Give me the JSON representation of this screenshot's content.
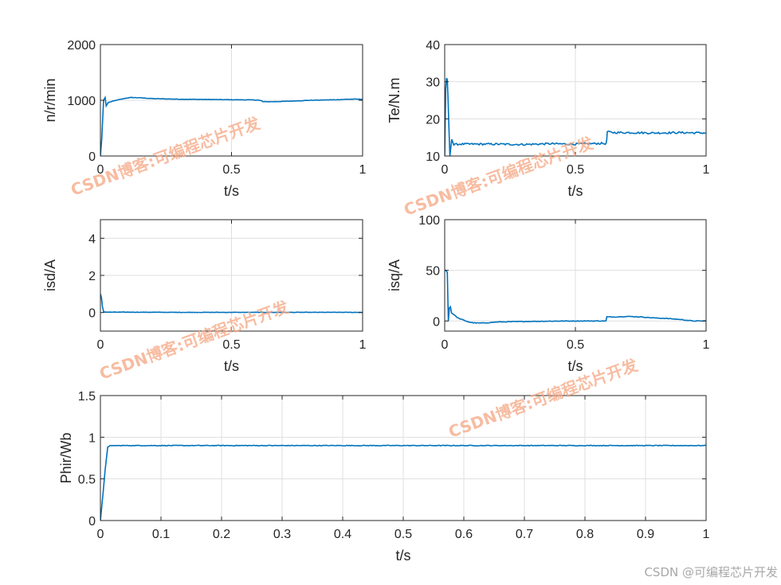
{
  "figure": {
    "watermark": "CSDN博客:可编程芯片开发",
    "footer": "CSDN @可编程芯片开发",
    "line_color": "#0072bd"
  },
  "chart_data": [
    {
      "type": "line",
      "xlabel": "t/s",
      "ylabel": "n/r/min",
      "xlim": [
        0,
        1
      ],
      "ylim": [
        0,
        2000
      ],
      "xticks": [
        0,
        0.5,
        1
      ],
      "xtick_labels": [
        "0",
        "0.5",
        "1"
      ],
      "yticks": [
        0,
        1000,
        2000
      ],
      "ytick_labels": [
        "0",
        "1000",
        "2000"
      ],
      "grid": true,
      "series": [
        {
          "x": [
            0,
            0.005,
            0.012,
            0.018,
            0.022,
            0.03,
            0.06,
            0.1,
            0.12,
            0.15,
            0.2,
            0.3,
            0.4,
            0.5,
            0.55,
            0.6,
            0.615,
            0.62,
            0.65,
            0.7,
            0.8,
            0.9,
            0.95,
            1.0
          ],
          "y": [
            0,
            300,
            1000,
            1050,
            900,
            960,
            1000,
            1040,
            1050,
            1045,
            1030,
            1020,
            1015,
            1010,
            1008,
            1005,
            990,
            975,
            975,
            980,
            1000,
            1010,
            1020,
            1020
          ],
          "noise": 4
        }
      ]
    },
    {
      "type": "line",
      "xlabel": "t/s",
      "ylabel": "Te/N.m",
      "xlim": [
        0,
        1
      ],
      "ylim": [
        10,
        40
      ],
      "xticks": [
        0,
        0.5,
        1
      ],
      "xtick_labels": [
        "0",
        "0.5",
        "1"
      ],
      "yticks": [
        10,
        20,
        30,
        40
      ],
      "ytick_labels": [
        "10",
        "20",
        "30",
        "40"
      ],
      "grid": true,
      "series": [
        {
          "x": [
            0,
            0.004,
            0.007,
            0.01,
            0.013,
            0.016,
            0.02,
            0.023,
            0.027,
            0.035,
            0.05,
            0.1,
            0.2,
            0.3,
            0.4,
            0.5,
            0.6,
            0.618,
            0.62,
            0.622,
            0.65,
            0.7,
            0.8,
            0.9,
            1.0
          ],
          "y": [
            10,
            28,
            31,
            30.5,
            25,
            18,
            10,
            12,
            14.5,
            13,
            13.2,
            13.2,
            13.2,
            13.1,
            13.3,
            13.2,
            13.4,
            13.3,
            14.5,
            16.5,
            16.3,
            16.3,
            16.2,
            16.3,
            16.2
          ],
          "noise": 0.25
        }
      ]
    },
    {
      "type": "line",
      "xlabel": "t/s",
      "ylabel": "isd/A",
      "xlim": [
        0,
        1
      ],
      "ylim": [
        -1,
        5
      ],
      "xticks": [
        0,
        0.5,
        1
      ],
      "xtick_labels": [
        "0",
        "0.5",
        "1"
      ],
      "yticks": [
        0,
        2,
        4
      ],
      "ytick_labels": [
        "0",
        "2",
        "4"
      ],
      "grid": true,
      "series": [
        {
          "x": [
            0,
            0.004,
            0.008,
            0.012,
            0.02,
            0.05,
            0.1,
            0.3,
            0.5,
            0.7,
            0.9,
            1.0
          ],
          "y": [
            1.0,
            0.8,
            0.3,
            0.05,
            0.02,
            0.02,
            0.02,
            0.01,
            0.01,
            0.01,
            0.01,
            0.01
          ],
          "noise": 0.01
        }
      ]
    },
    {
      "type": "line",
      "xlabel": "t/s",
      "ylabel": "isq/A",
      "xlim": [
        0,
        1
      ],
      "ylim": [
        -10,
        100
      ],
      "xticks": [
        0,
        0.5,
        1
      ],
      "xtick_labels": [
        "0",
        "0.5",
        "1"
      ],
      "yticks": [
        0,
        50,
        100
      ],
      "ytick_labels": [
        "0",
        "50",
        "100"
      ],
      "grid": true,
      "series": [
        {
          "x": [
            0,
            0.004,
            0.01,
            0.014,
            0.018,
            0.022,
            0.026,
            0.032,
            0.05,
            0.08,
            0.1,
            0.12,
            0.15,
            0.2,
            0.3,
            0.4,
            0.5,
            0.6,
            0.617,
            0.62,
            0.65,
            0.7,
            0.75,
            0.8,
            0.85,
            0.9,
            0.95,
            1.0
          ],
          "y": [
            50,
            50,
            48,
            0,
            13,
            14,
            8,
            7,
            3,
            0,
            -1.5,
            -2,
            -2,
            -1,
            -0.5,
            -0.2,
            0,
            0,
            0,
            4,
            4,
            4.5,
            4,
            3,
            2.5,
            1.5,
            0,
            0
          ],
          "noise": 0.3
        }
      ]
    },
    {
      "type": "line",
      "xlabel": "t/s",
      "ylabel": "Phir/Wb",
      "xlim": [
        0,
        1
      ],
      "ylim": [
        0,
        1.5
      ],
      "xticks": [
        0,
        0.1,
        0.2,
        0.3,
        0.4,
        0.5,
        0.6,
        0.7,
        0.8,
        0.9,
        1
      ],
      "xtick_labels": [
        "0",
        "0.1",
        "0.2",
        "0.3",
        "0.4",
        "0.5",
        "0.6",
        "0.7",
        "0.8",
        "0.9",
        "1"
      ],
      "yticks": [
        0,
        0.5,
        1,
        1.5
      ],
      "ytick_labels": [
        "0",
        "0.5",
        "1",
        "1.5"
      ],
      "grid": true,
      "series": [
        {
          "x": [
            0,
            0.004,
            0.008,
            0.012,
            0.016,
            0.03,
            0.1,
            0.3,
            0.5,
            0.7,
            0.9,
            1.0
          ],
          "y": [
            0,
            0.3,
            0.62,
            0.88,
            0.9,
            0.9,
            0.9,
            0.9,
            0.9,
            0.9,
            0.9,
            0.9
          ],
          "noise": 0.004
        }
      ]
    }
  ]
}
